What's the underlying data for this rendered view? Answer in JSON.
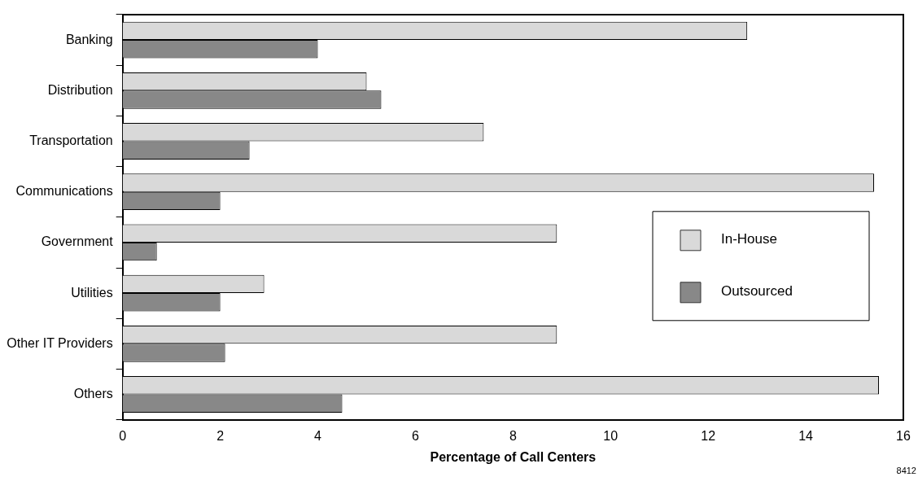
{
  "chart_data": {
    "type": "bar",
    "orientation": "horizontal",
    "xlabel": "Percentage of Call Centers",
    "categories": [
      "Banking",
      "Distribution",
      "Transportation",
      "Communications",
      "Government",
      "Utilities",
      "Other IT Providers",
      "Others"
    ],
    "series": [
      {
        "name": "In-House",
        "color": "#d9d9d9",
        "values": [
          12.8,
          5.0,
          7.4,
          15.4,
          8.9,
          2.9,
          8.9,
          15.5
        ]
      },
      {
        "name": "Outsourced",
        "color": "#888888",
        "values": [
          4.0,
          5.3,
          2.6,
          2.0,
          0.7,
          2.0,
          2.1,
          4.5
        ]
      }
    ],
    "xlim": [
      0,
      16
    ],
    "xticks": [
      0,
      2,
      4,
      6,
      8,
      10,
      12,
      14,
      16
    ],
    "grid": false,
    "legend": "right",
    "annotations": [
      "8412"
    ]
  }
}
